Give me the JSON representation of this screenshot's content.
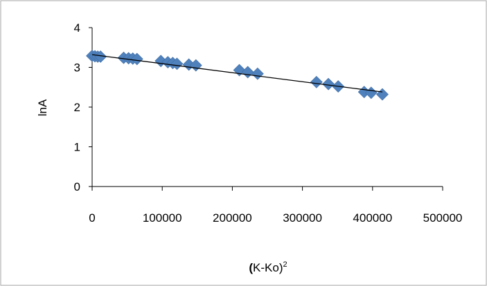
{
  "chart_data": {
    "type": "scatter",
    "title": "",
    "xlabel": "(K-Ko)",
    "xlabel_prefix": "(",
    "xlabel_body": "K-Ko)",
    "xlabel_superscript": "2",
    "ylabel": "lnA",
    "xlim": [
      0,
      500000
    ],
    "ylim": [
      0,
      4
    ],
    "x_ticks": [
      "0",
      "100000",
      "200000",
      "300000",
      "400000",
      "500000"
    ],
    "y_ticks": [
      "0",
      "1",
      "2",
      "3",
      "4"
    ],
    "grid": false,
    "legend": "none",
    "marker": "diamond",
    "marker_color": "#4F81BD",
    "line_color": "#000000",
    "series": [
      {
        "points": [
          [
            0,
            3.29
          ],
          [
            4000,
            3.28
          ],
          [
            8000,
            3.27
          ],
          [
            12000,
            3.27
          ],
          [
            45000,
            3.24
          ],
          [
            52000,
            3.23
          ],
          [
            58000,
            3.22
          ],
          [
            64000,
            3.21
          ],
          [
            98000,
            3.16
          ],
          [
            108000,
            3.13
          ],
          [
            115000,
            3.11
          ],
          [
            121000,
            3.09
          ],
          [
            138000,
            3.07
          ],
          [
            148000,
            3.05
          ],
          [
            210000,
            2.93
          ],
          [
            222000,
            2.88
          ],
          [
            236000,
            2.84
          ],
          [
            320000,
            2.63
          ],
          [
            337000,
            2.58
          ],
          [
            351000,
            2.52
          ],
          [
            388000,
            2.38
          ],
          [
            398000,
            2.36
          ],
          [
            414000,
            2.32
          ]
        ]
      }
    ],
    "trendline": {
      "x": [
        0,
        414000
      ],
      "y": [
        3.32,
        2.38
      ]
    }
  }
}
